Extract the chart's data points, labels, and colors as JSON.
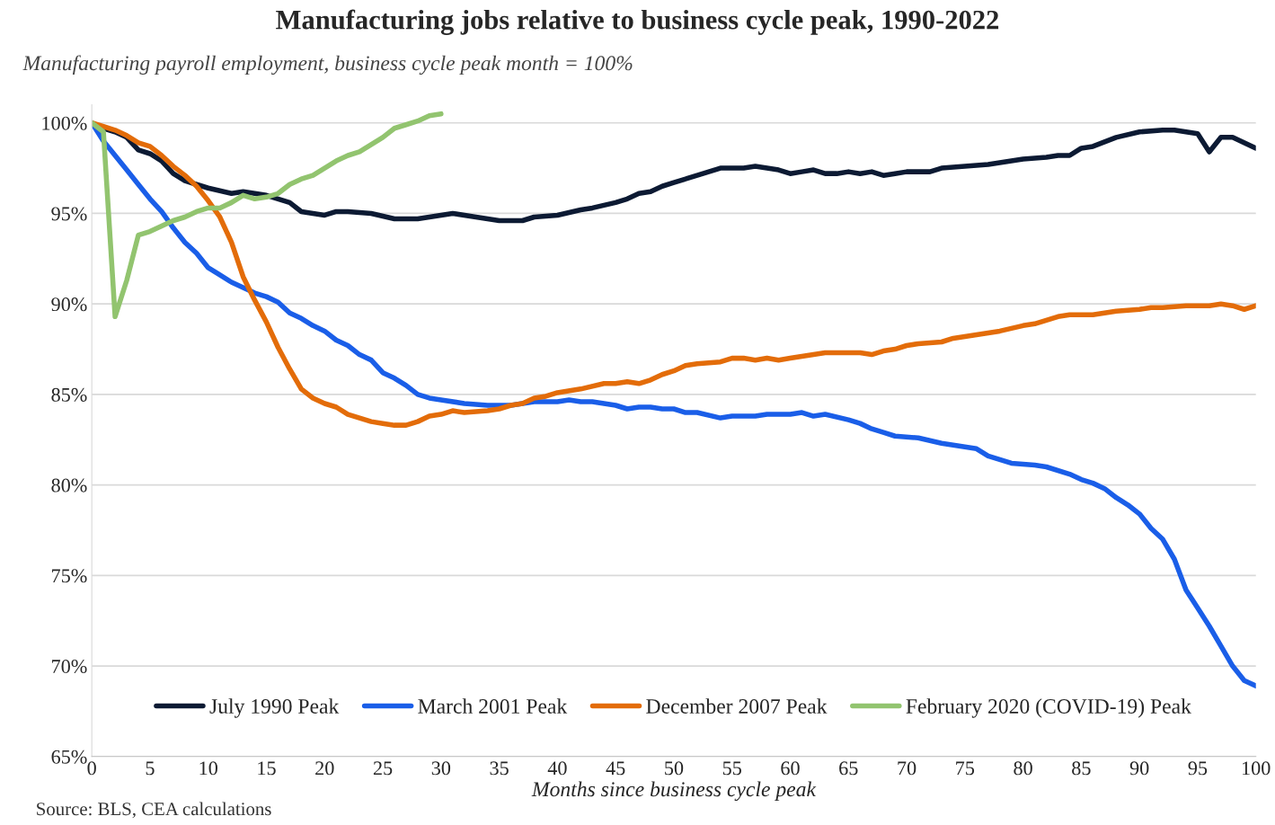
{
  "chart_data": {
    "type": "line",
    "title": "Manufacturing jobs relative to business cycle peak, 1990-2022",
    "subtitle": "Manufacturing payroll employment, business cycle peak month = 100%",
    "xlabel": "Months since business cycle peak",
    "annotations": [
      "Source: BLS, CEA calculations"
    ],
    "xlim": [
      0,
      100
    ],
    "xticks": [
      0,
      5,
      10,
      15,
      20,
      25,
      30,
      35,
      40,
      45,
      50,
      55,
      60,
      65,
      70,
      75,
      80,
      85,
      90,
      95,
      100
    ],
    "ylim": [
      65,
      101
    ],
    "yticks": [
      {
        "value": 65,
        "label": "65%"
      },
      {
        "value": 70,
        "label": "70%"
      },
      {
        "value": 75,
        "label": "75%"
      },
      {
        "value": 80,
        "label": "80%"
      },
      {
        "value": 85,
        "label": "85%"
      },
      {
        "value": 90,
        "label": "90%"
      },
      {
        "value": 95,
        "label": "95%"
      },
      {
        "value": 100,
        "label": "100%"
      }
    ],
    "grid": "y",
    "legend": "bottom",
    "marker": "none",
    "line_style": "solid",
    "series": [
      {
        "name": "July 1990 Peak",
        "color": "#0c1a33",
        "x": [
          0,
          1,
          2,
          3,
          4,
          5,
          6,
          7,
          8,
          9,
          10,
          12,
          13,
          15,
          17,
          18,
          20,
          21,
          22,
          24,
          26,
          28,
          30,
          31,
          33,
          35,
          37,
          38,
          40,
          42,
          43,
          45,
          46,
          47,
          48,
          49,
          50,
          52,
          53,
          54,
          56,
          57,
          59,
          60,
          61,
          62,
          63,
          64,
          65,
          66,
          67,
          68,
          69,
          70,
          72,
          73,
          75,
          77,
          79,
          80,
          82,
          83,
          84,
          85,
          86,
          88,
          90,
          92,
          93,
          95,
          96,
          97,
          98,
          100
        ],
        "values": [
          100,
          99.7,
          99.5,
          99.2,
          98.5,
          98.3,
          97.9,
          97.2,
          96.8,
          96.6,
          96.4,
          96.1,
          96.2,
          96.0,
          95.6,
          95.1,
          94.9,
          95.1,
          95.1,
          95.0,
          94.7,
          94.7,
          94.9,
          95.0,
          94.8,
          94.6,
          94.6,
          94.8,
          94.9,
          95.2,
          95.3,
          95.6,
          95.8,
          96.1,
          96.2,
          96.5,
          96.7,
          97.1,
          97.3,
          97.5,
          97.5,
          97.6,
          97.4,
          97.2,
          97.3,
          97.4,
          97.2,
          97.2,
          97.3,
          97.2,
          97.3,
          97.1,
          97.2,
          97.3,
          97.3,
          97.5,
          97.6,
          97.7,
          97.9,
          98.0,
          98.1,
          98.2,
          98.2,
          98.6,
          98.7,
          99.2,
          99.5,
          99.6,
          99.6,
          99.4,
          98.4,
          99.2,
          99.2,
          98.6
        ]
      },
      {
        "name": "March 2001 Peak",
        "color": "#1a5ee8",
        "x": [
          0,
          1,
          2,
          3,
          4,
          5,
          6,
          7,
          8,
          9,
          10,
          11,
          12,
          13,
          14,
          15,
          16,
          17,
          18,
          19,
          20,
          21,
          22,
          23,
          24,
          25,
          26,
          27,
          28,
          29,
          30,
          32,
          34,
          36,
          38,
          40,
          41,
          42,
          43,
          45,
          46,
          47,
          48,
          49,
          50,
          51,
          52,
          54,
          55,
          57,
          58,
          60,
          61,
          62,
          63,
          65,
          66,
          67,
          68,
          69,
          71,
          73,
          75,
          76,
          77,
          78,
          79,
          81,
          82,
          84,
          85,
          86,
          87,
          88,
          89,
          90,
          91,
          92,
          93,
          94,
          95,
          96,
          97,
          98,
          99,
          100
        ],
        "values": [
          100,
          99.0,
          98.2,
          97.4,
          96.6,
          95.8,
          95.1,
          94.2,
          93.4,
          92.8,
          92.0,
          91.6,
          91.2,
          90.9,
          90.6,
          90.4,
          90.1,
          89.5,
          89.2,
          88.8,
          88.5,
          88.0,
          87.7,
          87.2,
          86.9,
          86.2,
          85.9,
          85.5,
          85.0,
          84.8,
          84.7,
          84.5,
          84.4,
          84.4,
          84.6,
          84.6,
          84.7,
          84.6,
          84.6,
          84.4,
          84.2,
          84.3,
          84.3,
          84.2,
          84.2,
          84.0,
          84.0,
          83.7,
          83.8,
          83.8,
          83.9,
          83.9,
          84.0,
          83.8,
          83.9,
          83.6,
          83.4,
          83.1,
          82.9,
          82.7,
          82.6,
          82.3,
          82.1,
          82.0,
          81.6,
          81.4,
          81.2,
          81.1,
          81.0,
          80.6,
          80.3,
          80.1,
          79.8,
          79.3,
          78.9,
          78.4,
          77.6,
          77.0,
          75.9,
          74.2,
          73.2,
          72.2,
          71.1,
          70.0,
          69.2,
          68.9
        ]
      },
      {
        "name": "December 2007 Peak",
        "color": "#e36c09",
        "x": [
          0,
          1,
          2,
          3,
          4,
          5,
          6,
          7,
          8,
          9,
          10,
          11,
          12,
          13,
          14,
          15,
          16,
          17,
          18,
          19,
          20,
          21,
          22,
          23,
          24,
          25,
          26,
          27,
          28,
          29,
          30,
          31,
          32,
          34,
          35,
          36,
          37,
          38,
          39,
          40,
          42,
          44,
          45,
          46,
          47,
          48,
          49,
          50,
          51,
          52,
          54,
          55,
          56,
          57,
          58,
          59,
          60,
          61,
          62,
          63,
          65,
          66,
          67,
          68,
          69,
          70,
          71,
          73,
          74,
          76,
          77,
          78,
          80,
          81,
          82,
          83,
          84,
          86,
          88,
          90,
          91,
          92,
          94,
          96,
          97,
          98,
          99,
          100
        ],
        "values": [
          100,
          99.8,
          99.6,
          99.3,
          98.9,
          98.7,
          98.2,
          97.6,
          97.1,
          96.5,
          95.7,
          94.8,
          93.4,
          91.5,
          90.2,
          89.0,
          87.6,
          86.4,
          85.3,
          84.8,
          84.5,
          84.3,
          83.9,
          83.7,
          83.5,
          83.4,
          83.3,
          83.3,
          83.5,
          83.8,
          83.9,
          84.1,
          84.0,
          84.1,
          84.2,
          84.4,
          84.5,
          84.8,
          84.9,
          85.1,
          85.3,
          85.6,
          85.6,
          85.7,
          85.6,
          85.8,
          86.1,
          86.3,
          86.6,
          86.7,
          86.8,
          87.0,
          87.0,
          86.9,
          87.0,
          86.9,
          87.0,
          87.1,
          87.2,
          87.3,
          87.3,
          87.3,
          87.2,
          87.4,
          87.5,
          87.7,
          87.8,
          87.9,
          88.1,
          88.3,
          88.4,
          88.5,
          88.8,
          88.9,
          89.1,
          89.3,
          89.4,
          89.4,
          89.6,
          89.7,
          89.8,
          89.8,
          89.9,
          89.9,
          90.0,
          89.9,
          89.7,
          89.9
        ]
      },
      {
        "name": "February 2020 (COVID-19) Peak",
        "color": "#92c46f",
        "x": [
          0,
          1,
          2,
          3,
          4,
          5,
          6,
          7,
          8,
          9,
          10,
          11,
          12,
          13,
          14,
          15,
          16,
          17,
          18,
          19,
          20,
          21,
          22,
          23,
          24,
          25,
          26,
          27,
          28,
          29,
          30
        ],
        "values": [
          100,
          99.5,
          89.3,
          91.3,
          93.8,
          94.0,
          94.3,
          94.6,
          94.8,
          95.1,
          95.3,
          95.3,
          95.6,
          96.0,
          95.8,
          95.9,
          96.1,
          96.6,
          96.9,
          97.1,
          97.5,
          97.9,
          98.2,
          98.4,
          98.8,
          99.2,
          99.7,
          99.9,
          100.1,
          100.4,
          100.5
        ]
      }
    ]
  }
}
